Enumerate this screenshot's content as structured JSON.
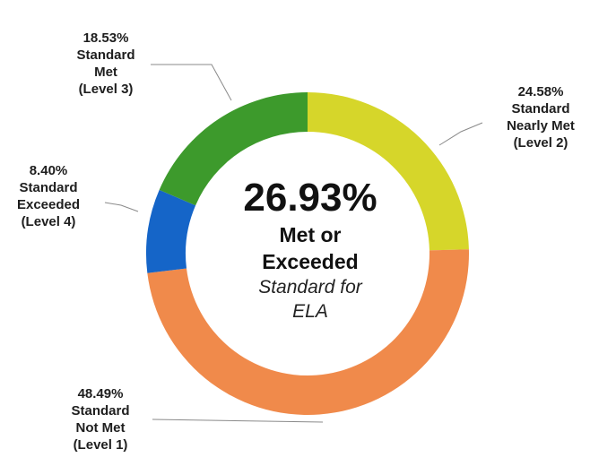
{
  "chart_data": {
    "type": "pie",
    "donut": true,
    "title": "",
    "center": {
      "value": "26.93%",
      "line1": "Met or",
      "line2": "Exceeded",
      "line3": "Standard for",
      "line4": "ELA"
    },
    "slices": [
      {
        "name": "Level 2",
        "value": 24.58,
        "color": "#d6d62a",
        "label": [
          "24.58%",
          "Standard",
          "Nearly Met",
          "(Level 2)"
        ]
      },
      {
        "name": "Level 1",
        "value": 48.49,
        "color": "#f08a4b",
        "label": [
          "48.49%",
          "Standard",
          "Not Met",
          "(Level 1)"
        ]
      },
      {
        "name": "Level 4",
        "value": 8.4,
        "color": "#1565c8",
        "label": [
          "8.40%",
          "Standard",
          "Exceeded",
          "(Level 4)"
        ]
      },
      {
        "name": "Level 3",
        "value": 18.53,
        "color": "#3d9a2c",
        "label": [
          "18.53%",
          "Standard",
          "Met",
          "(Level 3)"
        ]
      }
    ]
  }
}
